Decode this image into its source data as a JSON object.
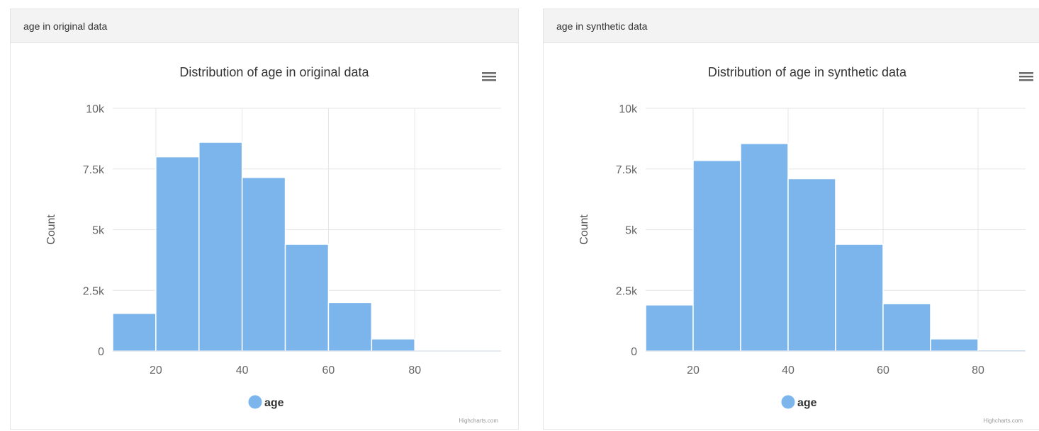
{
  "panels": [
    {
      "header": "age in original data"
    },
    {
      "header": "age in synthetic data"
    }
  ],
  "colors": {
    "bar": "#7cb5ec",
    "grid": "#e6e6e6",
    "axis": "#ccd6eb",
    "menu": "#666666"
  },
  "icons": {
    "menu": "hamburger-menu-icon"
  },
  "chart_data": [
    {
      "type": "bar",
      "title": "Distribution of age in original data",
      "xlabel": "",
      "ylabel": "Count",
      "bins": [
        [
          10,
          20
        ],
        [
          20,
          30
        ],
        [
          30,
          40
        ],
        [
          40,
          50
        ],
        [
          50,
          60
        ],
        [
          60,
          70
        ],
        [
          70,
          80
        ],
        [
          80,
          90
        ],
        [
          90,
          100
        ]
      ],
      "series": [
        {
          "name": "age",
          "values": [
            1550,
            8000,
            8600,
            7150,
            4400,
            2000,
            500,
            30,
            10
          ]
        }
      ],
      "xlim": [
        10,
        100
      ],
      "ylim": [
        0,
        10000
      ],
      "xticks": [
        20,
        40,
        60,
        80
      ],
      "xtick_labels": [
        "20",
        "40",
        "60",
        "80"
      ],
      "yticks": [
        0,
        2500,
        5000,
        7500,
        10000
      ],
      "ytick_labels": [
        "0",
        "2.5k",
        "5k",
        "7.5k",
        "10k"
      ],
      "grid": true,
      "legend": {
        "label": "age",
        "position": "bottom-center"
      },
      "credits": "Highcharts.com"
    },
    {
      "type": "bar",
      "title": "Distribution of age in synthetic data",
      "xlabel": "",
      "ylabel": "Count",
      "bins": [
        [
          10,
          20
        ],
        [
          20,
          30
        ],
        [
          30,
          40
        ],
        [
          40,
          50
        ],
        [
          50,
          60
        ],
        [
          60,
          70
        ],
        [
          70,
          80
        ],
        [
          80,
          90
        ]
      ],
      "series": [
        {
          "name": "age",
          "values": [
            1900,
            7850,
            8550,
            7100,
            4400,
            1950,
            500,
            50
          ]
        }
      ],
      "xlim": [
        10,
        90
      ],
      "ylim": [
        0,
        10000
      ],
      "xticks": [
        20,
        40,
        60,
        80
      ],
      "xtick_labels": [
        "20",
        "40",
        "60",
        "80"
      ],
      "yticks": [
        0,
        2500,
        5000,
        7500,
        10000
      ],
      "ytick_labels": [
        "0",
        "2.5k",
        "5k",
        "7.5k",
        "10k"
      ],
      "grid": true,
      "legend": {
        "label": "age",
        "position": "bottom-center"
      },
      "credits": "Highcharts.com"
    }
  ]
}
